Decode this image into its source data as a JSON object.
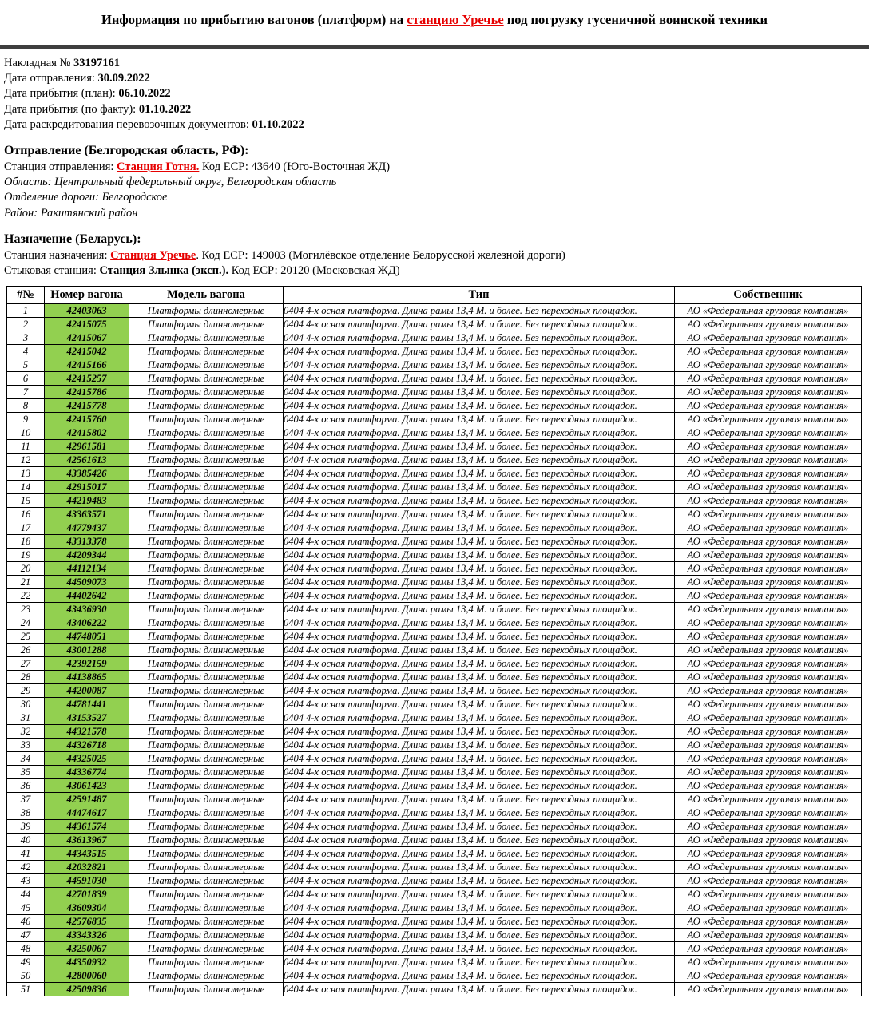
{
  "title": {
    "prefix": "Информация по прибытию вагонов (платформ) на ",
    "link": "станцию Уречье",
    "suffix": " под погрузку гусеничной воинской техники"
  },
  "shipment": {
    "invoice_label": "Накладная № ",
    "invoice_number": "33197161",
    "departure_date_label": "Дата отправления: ",
    "departure_date": "30.09.2022",
    "arrival_plan_label": "Дата прибытия (план): ",
    "arrival_plan_date": "06.10.2022",
    "arrival_fact_label": "Дата прибытия (по факту): ",
    "arrival_fact_date": "01.10.2022",
    "credit_label": "Дата раскредитования перевозочных документов: ",
    "credit_date": "01.10.2022"
  },
  "origin": {
    "heading": "Отправление (Белгородская область, РФ):",
    "station_label": "Станция отправления: ",
    "station_link": "Станция Готня.",
    "station_rest": " Код ЕСР: 43640 (Юго-Восточная ЖД)",
    "region": "Область: Центральный федеральный округ, Белгородская область",
    "division": "Отделение дороги: Белгородское",
    "district": "Район: Ракитянский район"
  },
  "destination": {
    "heading": "Назначение (Беларусь):",
    "station_label": "Станция назначения: ",
    "station_link": "Станция Уречье",
    "station_rest": ". Код ЕСР: 149003 (Могилёвское отделение Белорусской железной дороги)",
    "junction_label": "Стыковая станция: ",
    "junction_station": "Станция Злынка (эксп.).",
    "junction_rest": " Код ЕСР: 20120 (Московская ЖД)"
  },
  "table": {
    "headers": [
      "#№",
      "Номер вагона",
      "Модель вагона",
      "Тип",
      "Собственник"
    ],
    "model": "Платформы длинномерные",
    "type": "0404 4-х осная платформа. Длина рамы 13,4 М. и более. Без переходных площадок.",
    "owner": "АО «Федеральная грузовая компания»",
    "wagons": [
      "42403063",
      "42415075",
      "42415067",
      "42415042",
      "42415166",
      "42415257",
      "42415786",
      "42415778",
      "42415760",
      "42415802",
      "42961581",
      "42561613",
      "43385426",
      "42915017",
      "44219483",
      "43363571",
      "44779437",
      "43313378",
      "44209344",
      "44112134",
      "44509073",
      "44402642",
      "43436930",
      "43406222",
      "44748051",
      "43001288",
      "42392159",
      "44138865",
      "44200087",
      "44781441",
      "43153527",
      "44321578",
      "44326718",
      "44325025",
      "44336774",
      "43061423",
      "42591487",
      "44474617",
      "44361574",
      "43613967",
      "44343515",
      "42032821",
      "44591030",
      "42701839",
      "43609304",
      "42576835",
      "43343326",
      "43250067",
      "44350932",
      "42800060",
      "42509836"
    ]
  },
  "colors": {
    "link_red": "#e60000",
    "wagon_cell_green": "#92d050",
    "separator_bar": "#3e3e3e"
  }
}
